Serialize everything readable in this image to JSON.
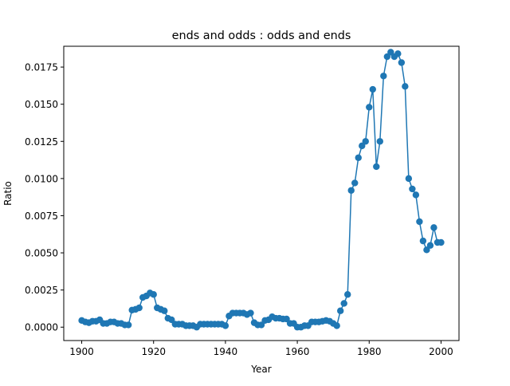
{
  "chart_data": {
    "type": "line",
    "title": "ends and odds : odds and ends",
    "xlabel": "Year",
    "ylabel": "Ratio",
    "xlim": [
      1895,
      2005
    ],
    "ylim": [
      -0.0009,
      0.0189
    ],
    "grid": false,
    "marker": "circle",
    "color": "#1f77b4",
    "x_ticks": [
      {
        "value": 1900,
        "label": "1900"
      },
      {
        "value": 1920,
        "label": "1920"
      },
      {
        "value": 1940,
        "label": "1940"
      },
      {
        "value": 1960,
        "label": "1960"
      },
      {
        "value": 1980,
        "label": "1980"
      },
      {
        "value": 2000,
        "label": "2000"
      }
    ],
    "y_ticks": [
      {
        "value": 0.0,
        "label": "0.0000"
      },
      {
        "value": 0.0025,
        "label": "0.0025"
      },
      {
        "value": 0.005,
        "label": "0.0050"
      },
      {
        "value": 0.0075,
        "label": "0.0075"
      },
      {
        "value": 0.01,
        "label": "0.0100"
      },
      {
        "value": 0.0125,
        "label": "0.0125"
      },
      {
        "value": 0.015,
        "label": "0.0150"
      },
      {
        "value": 0.0175,
        "label": "0.0175"
      }
    ],
    "series": [
      {
        "x": [
          1900,
          1901,
          1902,
          1903,
          1904,
          1905,
          1906,
          1907,
          1908,
          1909,
          1910,
          1911,
          1912,
          1913,
          1914,
          1915,
          1916,
          1917,
          1918,
          1919,
          1920,
          1921,
          1922,
          1923,
          1924,
          1925,
          1926,
          1927,
          1928,
          1929,
          1930,
          1931,
          1932,
          1933,
          1934,
          1935,
          1936,
          1937,
          1938,
          1939,
          1940,
          1941,
          1942,
          1943,
          1944,
          1945,
          1946,
          1947,
          1948,
          1949,
          1950,
          1951,
          1952,
          1953,
          1954,
          1955,
          1956,
          1957,
          1958,
          1959,
          1960,
          1961,
          1962,
          1963,
          1964,
          1965,
          1966,
          1967,
          1968,
          1969,
          1970,
          1971,
          1972,
          1973,
          1974,
          1975,
          1976,
          1977,
          1978,
          1979,
          1980,
          1981,
          1982,
          1983,
          1984,
          1985,
          1986,
          1987,
          1988,
          1989,
          1990,
          1991,
          1992,
          1993,
          1994,
          1995,
          1996,
          1997,
          1998,
          1999,
          2000
        ],
        "y": [
          0.00045,
          0.00035,
          0.0003,
          0.0004,
          0.0004,
          0.0005,
          0.00025,
          0.00025,
          0.00035,
          0.00035,
          0.00025,
          0.00025,
          0.00015,
          0.00015,
          0.00115,
          0.0012,
          0.0013,
          0.002,
          0.0021,
          0.0023,
          0.0022,
          0.0013,
          0.0012,
          0.0011,
          0.0006,
          0.0005,
          0.0002,
          0.0002,
          0.0002,
          0.0001,
          0.0001,
          0.0001,
          0.0,
          0.0002,
          0.0002,
          0.0002,
          0.0002,
          0.0002,
          0.0002,
          0.0002,
          0.0001,
          0.00075,
          0.00095,
          0.00095,
          0.00095,
          0.00095,
          0.00085,
          0.00095,
          0.0003,
          0.00015,
          0.00015,
          0.00045,
          0.0005,
          0.0007,
          0.0006,
          0.0006,
          0.00055,
          0.00055,
          0.00025,
          0.00025,
          0.0,
          0.0,
          0.0001,
          0.0001,
          0.00035,
          0.00035,
          0.00035,
          0.0004,
          0.00045,
          0.0004,
          0.00025,
          0.0001,
          0.0011,
          0.0016,
          0.0022,
          0.0092,
          0.0097,
          0.0114,
          0.0122,
          0.0125,
          0.0148,
          0.016,
          0.0108,
          0.0125,
          0.0169,
          0.0182,
          0.0185,
          0.0182,
          0.0184,
          0.0178,
          0.0162,
          0.01,
          0.0093,
          0.0089,
          0.0071,
          0.0058,
          0.0052,
          0.0055,
          0.0067,
          0.0057,
          0.0057
        ]
      }
    ]
  }
}
